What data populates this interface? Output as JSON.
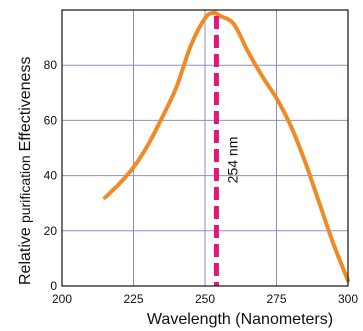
{
  "chart_data": {
    "type": "line",
    "xlabel": "Wavelength (Nanometers)",
    "ylabel": {
      "prefix": "Relative",
      "middle": "purification",
      "suffix": "Effectiveness"
    },
    "xlim": [
      200,
      300
    ],
    "ylim": [
      0,
      100
    ],
    "x_ticks": [
      "200",
      "225",
      "250",
      "275",
      "300"
    ],
    "y_ticks": [
      "0",
      "20",
      "40",
      "60",
      "80"
    ],
    "grid": true,
    "series": [
      {
        "color": "#f08a24",
        "x": [
          215,
          220,
          225,
          230,
          235,
          240,
          245,
          250,
          253,
          255,
          260,
          265,
          270,
          275,
          280,
          285,
          290,
          295,
          300
        ],
        "y": [
          32,
          37,
          43,
          51,
          61,
          72,
          87,
          97,
          99,
          98,
          95,
          85,
          76,
          68,
          58,
          45,
          30,
          15,
          2
        ]
      }
    ],
    "reference_line": {
      "x": 254,
      "label": "254 nm",
      "color": "#e0187a"
    }
  }
}
